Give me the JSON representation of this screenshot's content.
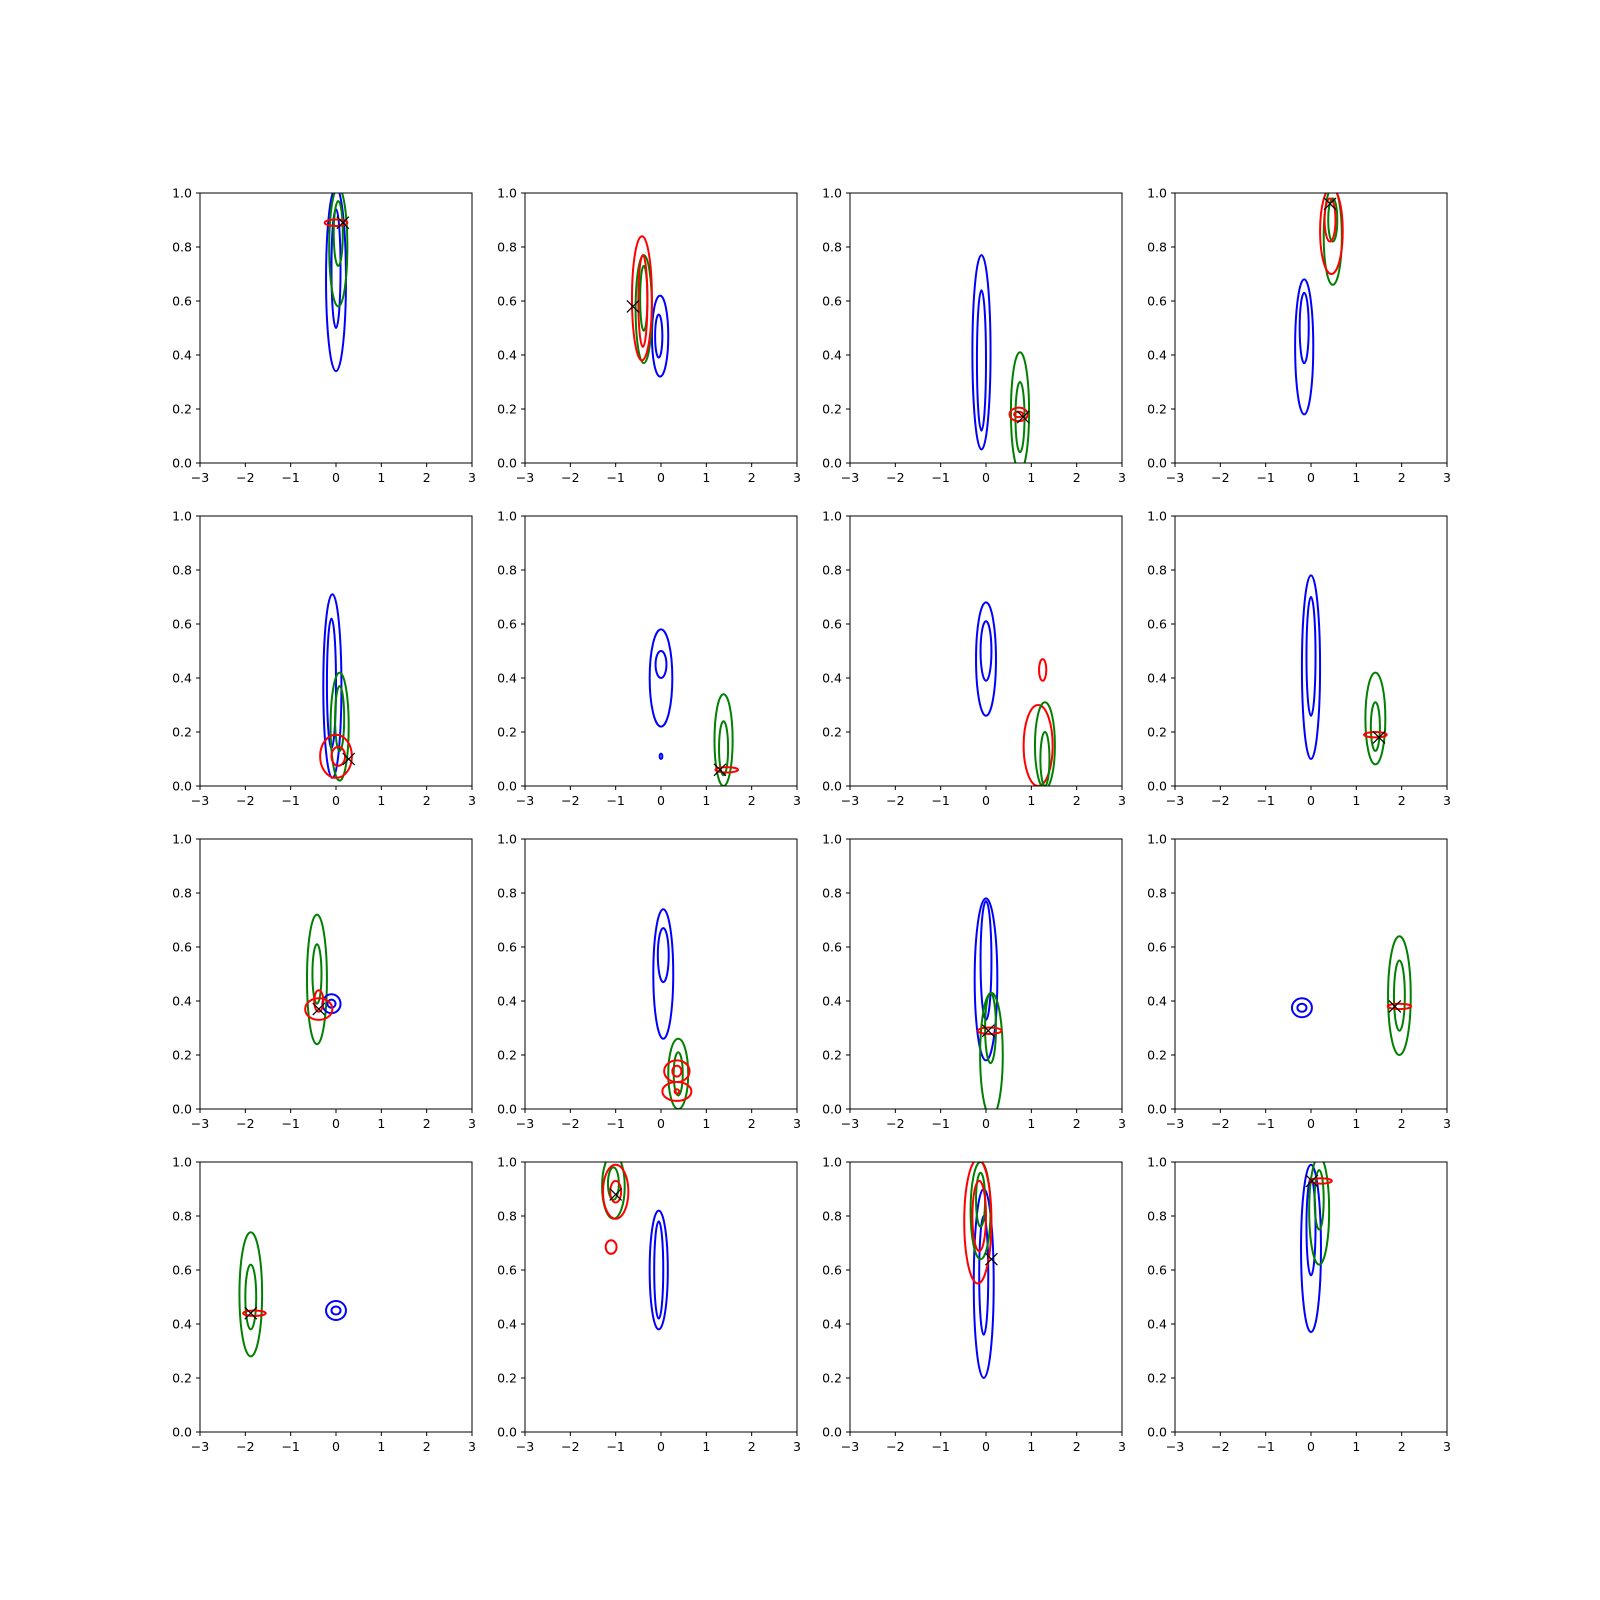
{
  "chart_data": {
    "type": "contour",
    "layout": {
      "rows": 4,
      "cols": 4
    },
    "xlim": [
      -3,
      3
    ],
    "ylim": [
      0,
      1
    ],
    "xticks": [
      "−3",
      "−2",
      "−1",
      "0",
      "1",
      "2",
      "3"
    ],
    "yticks": [
      "0.0",
      "0.2",
      "0.4",
      "0.6",
      "0.8",
      "1.0"
    ],
    "colors": {
      "blue": "#0000ff",
      "green": "#008000",
      "red": "#ff0000",
      "marker": "#000000"
    },
    "panels": [
      {
        "marker": [
          0.15,
          0.89
        ],
        "contours": [
          {
            "color": "blue",
            "cx": 0.0,
            "cy": 0.68,
            "rx": 0.22,
            "ry": 0.34
          },
          {
            "color": "blue",
            "cx": 0.0,
            "cy": 0.72,
            "rx": 0.1,
            "ry": 0.22
          },
          {
            "color": "green",
            "cx": 0.05,
            "cy": 0.8,
            "rx": 0.2,
            "ry": 0.22
          },
          {
            "color": "green",
            "cx": 0.05,
            "cy": 0.85,
            "rx": 0.1,
            "ry": 0.12
          },
          {
            "color": "red",
            "cx": 0.0,
            "cy": 0.89,
            "rx": 0.25,
            "ry": 0.012
          }
        ]
      },
      {
        "marker": [
          -0.62,
          0.58
        ],
        "contours": [
          {
            "color": "blue",
            "cx": -0.02,
            "cy": 0.47,
            "rx": 0.18,
            "ry": 0.15
          },
          {
            "color": "blue",
            "cx": -0.05,
            "cy": 0.47,
            "rx": 0.08,
            "ry": 0.08
          },
          {
            "color": "green",
            "cx": -0.38,
            "cy": 0.57,
            "rx": 0.18,
            "ry": 0.2
          },
          {
            "color": "green",
            "cx": -0.38,
            "cy": 0.61,
            "rx": 0.08,
            "ry": 0.12
          },
          {
            "color": "red",
            "cx": -0.42,
            "cy": 0.61,
            "rx": 0.22,
            "ry": 0.23
          },
          {
            "color": "red",
            "cx": -0.4,
            "cy": 0.6,
            "rx": 0.1,
            "ry": 0.17
          }
        ]
      },
      {
        "marker": [
          0.82,
          0.17
        ],
        "contours": [
          {
            "color": "blue",
            "cx": -0.1,
            "cy": 0.41,
            "rx": 0.2,
            "ry": 0.36
          },
          {
            "color": "blue",
            "cx": -0.1,
            "cy": 0.38,
            "rx": 0.1,
            "ry": 0.26
          },
          {
            "color": "green",
            "cx": 0.75,
            "cy": 0.19,
            "rx": 0.2,
            "ry": 0.22
          },
          {
            "color": "green",
            "cx": 0.75,
            "cy": 0.17,
            "rx": 0.1,
            "ry": 0.13
          },
          {
            "color": "red",
            "cx": 0.72,
            "cy": 0.18,
            "rx": 0.2,
            "ry": 0.025
          },
          {
            "color": "red",
            "cx": 0.72,
            "cy": 0.18,
            "rx": 0.1,
            "ry": 0.01
          }
        ]
      },
      {
        "marker": [
          0.42,
          0.96
        ],
        "contours": [
          {
            "color": "blue",
            "cx": -0.15,
            "cy": 0.43,
            "rx": 0.2,
            "ry": 0.25
          },
          {
            "color": "blue",
            "cx": -0.15,
            "cy": 0.5,
            "rx": 0.1,
            "ry": 0.13
          },
          {
            "color": "green",
            "cx": 0.48,
            "cy": 0.84,
            "rx": 0.2,
            "ry": 0.18
          },
          {
            "color": "green",
            "cx": 0.48,
            "cy": 0.9,
            "rx": 0.1,
            "ry": 0.08
          },
          {
            "color": "red",
            "cx": 0.45,
            "cy": 0.86,
            "rx": 0.25,
            "ry": 0.16
          },
          {
            "color": "red",
            "cx": 0.42,
            "cy": 0.9,
            "rx": 0.12,
            "ry": 0.08
          }
        ]
      },
      {
        "marker": [
          0.28,
          0.1
        ],
        "contours": [
          {
            "color": "blue",
            "cx": -0.08,
            "cy": 0.37,
            "rx": 0.2,
            "ry": 0.34
          },
          {
            "color": "blue",
            "cx": -0.1,
            "cy": 0.38,
            "rx": 0.1,
            "ry": 0.24
          },
          {
            "color": "green",
            "cx": 0.08,
            "cy": 0.22,
            "rx": 0.2,
            "ry": 0.2
          },
          {
            "color": "green",
            "cx": 0.08,
            "cy": 0.25,
            "rx": 0.1,
            "ry": 0.12
          },
          {
            "color": "red",
            "cx": 0.0,
            "cy": 0.11,
            "rx": 0.35,
            "ry": 0.08
          },
          {
            "color": "red",
            "cx": 0.05,
            "cy": 0.11,
            "rx": 0.15,
            "ry": 0.035
          }
        ]
      },
      {
        "marker": [
          1.3,
          0.06
        ],
        "contours": [
          {
            "color": "blue",
            "cx": 0.0,
            "cy": 0.4,
            "rx": 0.25,
            "ry": 0.18
          },
          {
            "color": "blue",
            "cx": 0.0,
            "cy": 0.45,
            "rx": 0.12,
            "ry": 0.05
          },
          {
            "color": "blue",
            "cx": 0.0,
            "cy": 0.11,
            "rx": 0.03,
            "ry": 0.01
          },
          {
            "color": "green",
            "cx": 1.38,
            "cy": 0.17,
            "rx": 0.2,
            "ry": 0.17
          },
          {
            "color": "green",
            "cx": 1.38,
            "cy": 0.14,
            "rx": 0.1,
            "ry": 0.1
          },
          {
            "color": "red",
            "cx": 1.45,
            "cy": 0.06,
            "rx": 0.25,
            "ry": 0.01
          }
        ]
      },
      {
        "marker": null,
        "contours": [
          {
            "color": "blue",
            "cx": 0.0,
            "cy": 0.47,
            "rx": 0.22,
            "ry": 0.21
          },
          {
            "color": "blue",
            "cx": 0.0,
            "cy": 0.5,
            "rx": 0.12,
            "ry": 0.11
          },
          {
            "color": "red",
            "cx": 1.25,
            "cy": 0.43,
            "rx": 0.08,
            "ry": 0.04
          },
          {
            "color": "red",
            "cx": 1.15,
            "cy": 0.15,
            "rx": 0.32,
            "ry": 0.15
          },
          {
            "color": "green",
            "cx": 1.3,
            "cy": 0.15,
            "rx": 0.22,
            "ry": 0.16
          },
          {
            "color": "green",
            "cx": 1.3,
            "cy": 0.1,
            "rx": 0.1,
            "ry": 0.1
          }
        ]
      },
      {
        "marker": [
          1.5,
          0.18
        ],
        "contours": [
          {
            "color": "blue",
            "cx": 0.0,
            "cy": 0.44,
            "rx": 0.2,
            "ry": 0.34
          },
          {
            "color": "blue",
            "cx": 0.0,
            "cy": 0.48,
            "rx": 0.1,
            "ry": 0.22
          },
          {
            "color": "green",
            "cx": 1.42,
            "cy": 0.25,
            "rx": 0.22,
            "ry": 0.17
          },
          {
            "color": "green",
            "cx": 1.42,
            "cy": 0.22,
            "rx": 0.1,
            "ry": 0.09
          },
          {
            "color": "red",
            "cx": 1.42,
            "cy": 0.19,
            "rx": 0.25,
            "ry": 0.01
          }
        ]
      },
      {
        "marker": [
          -0.38,
          0.37
        ],
        "contours": [
          {
            "color": "green",
            "cx": -0.42,
            "cy": 0.48,
            "rx": 0.22,
            "ry": 0.24
          },
          {
            "color": "green",
            "cx": -0.42,
            "cy": 0.5,
            "rx": 0.1,
            "ry": 0.11
          },
          {
            "color": "blue",
            "cx": -0.1,
            "cy": 0.39,
            "rx": 0.2,
            "ry": 0.035
          },
          {
            "color": "blue",
            "cx": -0.1,
            "cy": 0.39,
            "rx": 0.09,
            "ry": 0.015
          },
          {
            "color": "red",
            "cx": -0.38,
            "cy": 0.37,
            "rx": 0.3,
            "ry": 0.04
          },
          {
            "color": "red",
            "cx": -0.38,
            "cy": 0.4,
            "rx": 0.1,
            "ry": 0.04
          }
        ]
      },
      {
        "marker": null,
        "contours": [
          {
            "color": "blue",
            "cx": 0.05,
            "cy": 0.5,
            "rx": 0.22,
            "ry": 0.24
          },
          {
            "color": "blue",
            "cx": 0.05,
            "cy": 0.57,
            "rx": 0.12,
            "ry": 0.1
          },
          {
            "color": "green",
            "cx": 0.38,
            "cy": 0.13,
            "rx": 0.22,
            "ry": 0.13
          },
          {
            "color": "green",
            "cx": 0.38,
            "cy": 0.13,
            "rx": 0.1,
            "ry": 0.08
          },
          {
            "color": "red",
            "cx": 0.35,
            "cy": 0.14,
            "rx": 0.28,
            "ry": 0.04
          },
          {
            "color": "red",
            "cx": 0.35,
            "cy": 0.065,
            "rx": 0.32,
            "ry": 0.035
          },
          {
            "color": "red",
            "cx": 0.35,
            "cy": 0.14,
            "rx": 0.1,
            "ry": 0.02
          },
          {
            "color": "red",
            "cx": 0.35,
            "cy": 0.065,
            "rx": 0.05,
            "ry": 0.008
          }
        ]
      },
      {
        "marker": [
          0.05,
          0.29
        ],
        "contours": [
          {
            "color": "blue",
            "cx": 0.0,
            "cy": 0.48,
            "rx": 0.25,
            "ry": 0.3
          },
          {
            "color": "blue",
            "cx": 0.0,
            "cy": 0.55,
            "rx": 0.12,
            "ry": 0.22
          },
          {
            "color": "green",
            "cx": 0.12,
            "cy": 0.2,
            "rx": 0.25,
            "ry": 0.23
          },
          {
            "color": "green",
            "cx": 0.1,
            "cy": 0.3,
            "rx": 0.12,
            "ry": 0.13
          },
          {
            "color": "red",
            "cx": 0.08,
            "cy": 0.29,
            "rx": 0.26,
            "ry": 0.012
          }
        ]
      },
      {
        "marker": [
          1.85,
          0.38
        ],
        "contours": [
          {
            "color": "blue",
            "cx": -0.2,
            "cy": 0.375,
            "rx": 0.22,
            "ry": 0.035
          },
          {
            "color": "blue",
            "cx": -0.2,
            "cy": 0.375,
            "rx": 0.1,
            "ry": 0.015
          },
          {
            "color": "green",
            "cx": 1.95,
            "cy": 0.42,
            "rx": 0.25,
            "ry": 0.22
          },
          {
            "color": "green",
            "cx": 1.95,
            "cy": 0.42,
            "rx": 0.12,
            "ry": 0.13
          },
          {
            "color": "red",
            "cx": 1.95,
            "cy": 0.38,
            "rx": 0.26,
            "ry": 0.01
          }
        ]
      },
      {
        "marker": [
          -1.88,
          0.44
        ],
        "contours": [
          {
            "color": "green",
            "cx": -1.88,
            "cy": 0.51,
            "rx": 0.25,
            "ry": 0.23
          },
          {
            "color": "green",
            "cx": -1.88,
            "cy": 0.5,
            "rx": 0.12,
            "ry": 0.12
          },
          {
            "color": "blue",
            "cx": 0.0,
            "cy": 0.45,
            "rx": 0.22,
            "ry": 0.035
          },
          {
            "color": "blue",
            "cx": 0.0,
            "cy": 0.45,
            "rx": 0.1,
            "ry": 0.015
          },
          {
            "color": "red",
            "cx": -1.8,
            "cy": 0.44,
            "rx": 0.25,
            "ry": 0.01
          }
        ]
      },
      {
        "marker": [
          -1.0,
          0.88
        ],
        "contours": [
          {
            "color": "blue",
            "cx": -0.05,
            "cy": 0.6,
            "rx": 0.2,
            "ry": 0.22
          },
          {
            "color": "blue",
            "cx": -0.05,
            "cy": 0.6,
            "rx": 0.1,
            "ry": 0.18
          },
          {
            "color": "green",
            "cx": -1.05,
            "cy": 0.91,
            "rx": 0.25,
            "ry": 0.12
          },
          {
            "color": "green",
            "cx": -1.05,
            "cy": 0.92,
            "rx": 0.12,
            "ry": 0.06
          },
          {
            "color": "red",
            "cx": -1.0,
            "cy": 0.89,
            "rx": 0.28,
            "ry": 0.1
          },
          {
            "color": "red",
            "cx": -1.0,
            "cy": 0.89,
            "rx": 0.12,
            "ry": 0.04
          },
          {
            "color": "red",
            "cx": -1.1,
            "cy": 0.685,
            "rx": 0.12,
            "ry": 0.025
          }
        ]
      },
      {
        "marker": [
          0.12,
          0.64
        ],
        "contours": [
          {
            "color": "blue",
            "cx": -0.05,
            "cy": 0.55,
            "rx": 0.22,
            "ry": 0.35
          },
          {
            "color": "blue",
            "cx": -0.05,
            "cy": 0.58,
            "rx": 0.1,
            "ry": 0.22
          },
          {
            "color": "green",
            "cx": -0.12,
            "cy": 0.82,
            "rx": 0.22,
            "ry": 0.18
          },
          {
            "color": "green",
            "cx": -0.12,
            "cy": 0.86,
            "rx": 0.1,
            "ry": 0.1
          },
          {
            "color": "red",
            "cx": -0.18,
            "cy": 0.78,
            "rx": 0.3,
            "ry": 0.23
          },
          {
            "color": "red",
            "cx": -0.15,
            "cy": 0.8,
            "rx": 0.15,
            "ry": 0.13
          }
        ]
      },
      {
        "marker": [
          0.02,
          0.93
        ],
        "contours": [
          {
            "color": "blue",
            "cx": 0.0,
            "cy": 0.68,
            "rx": 0.22,
            "ry": 0.31
          },
          {
            "color": "blue",
            "cx": 0.0,
            "cy": 0.76,
            "rx": 0.1,
            "ry": 0.18
          },
          {
            "color": "green",
            "cx": 0.18,
            "cy": 0.82,
            "rx": 0.22,
            "ry": 0.2
          },
          {
            "color": "green",
            "cx": 0.18,
            "cy": 0.86,
            "rx": 0.1,
            "ry": 0.11
          },
          {
            "color": "red",
            "cx": 0.22,
            "cy": 0.93,
            "rx": 0.24,
            "ry": 0.01
          }
        ]
      }
    ]
  }
}
